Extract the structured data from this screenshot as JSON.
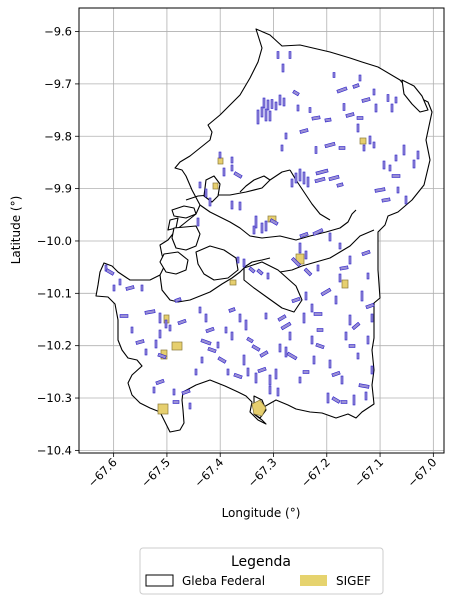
{
  "map": {
    "xlabel": "Longitude (°)",
    "ylabel": "Latitude (°)",
    "xlim": [
      -67.665,
      -66.98
    ],
    "ylim": [
      -10.405,
      -9.555
    ],
    "grid": true,
    "x_ticks": [
      -67.6,
      -67.5,
      -67.4,
      -67.3,
      -67.2,
      -67.1,
      -67.0
    ],
    "x_tick_labels": [
      "−67.6",
      "−67.5",
      "−67.4",
      "−67.3",
      "−67.2",
      "−67.1",
      "−67.0"
    ],
    "y_ticks": [
      -9.6,
      -9.7,
      -9.8,
      -9.9,
      -10.0,
      -10.1,
      -10.2,
      -10.3,
      -10.4
    ],
    "y_tick_labels": [
      "−9.6",
      "−9.7",
      "−9.8",
      "−9.9",
      "−10.0",
      "−10.1",
      "−10.2",
      "−10.3",
      "−10.4"
    ],
    "layers": [
      {
        "name": "Gleba Federal",
        "fill": "#ffffff",
        "stroke": "#000000"
      },
      {
        "name": "SIGEF",
        "fill": "#e6cf6e",
        "stroke": "#8a7a3a"
      },
      {
        "name": "parcels",
        "fill": "#9a8fd6",
        "stroke": "#2a1fc8"
      }
    ]
  },
  "legend": {
    "title": "Legenda",
    "items": [
      {
        "label": "Gleba Federal",
        "swatch": "outline",
        "color": "#000000"
      },
      {
        "label": "SIGEF",
        "swatch": "fill",
        "color": "#e6d36e"
      }
    ],
    "placement": "bottom-center"
  }
}
